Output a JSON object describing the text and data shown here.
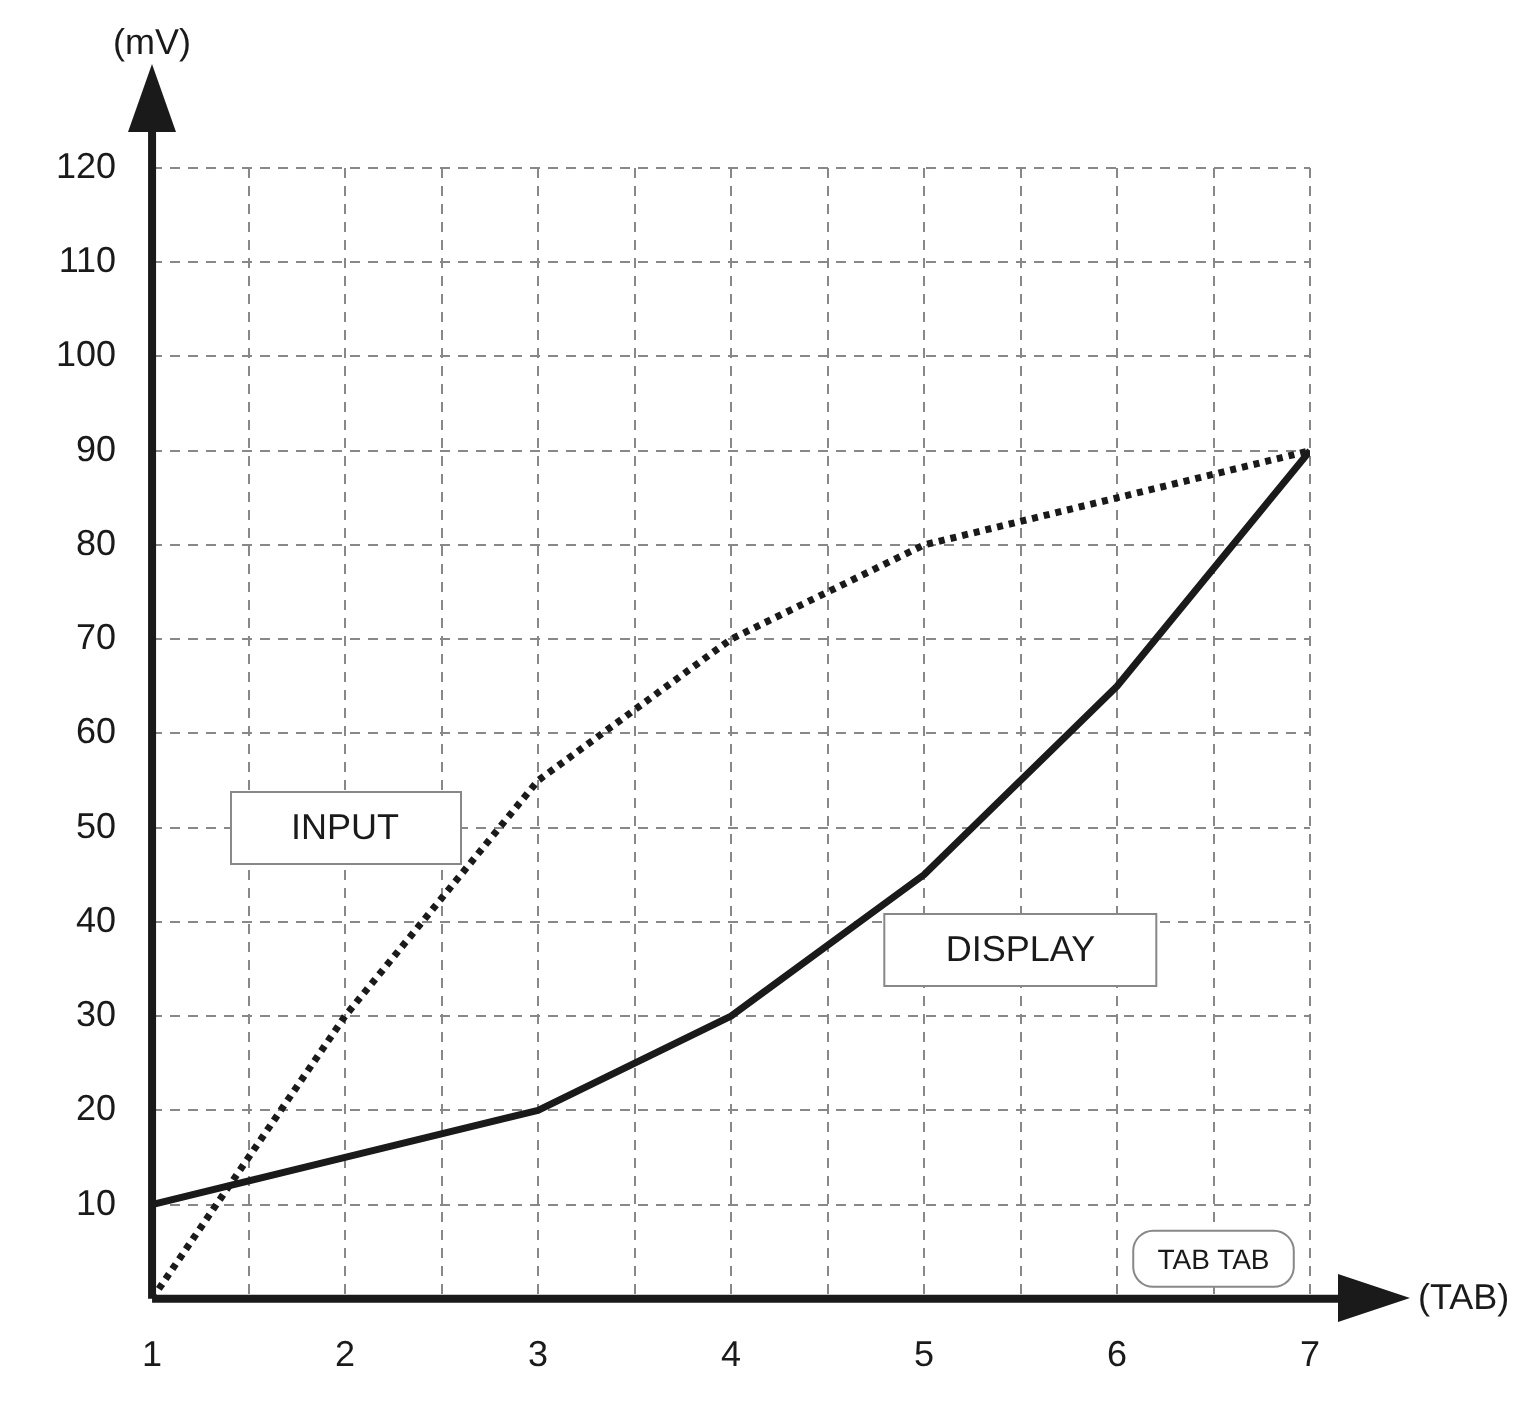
{
  "chart_data": {
    "type": "line",
    "xlabel": "(TAB)",
    "ylabel": "(mV)",
    "x": [
      1,
      2,
      3,
      4,
      5,
      6,
      7
    ],
    "series": [
      {
        "name": "INPUT",
        "color": "#1a1a1a",
        "line_style": "dotted",
        "values": [
          0,
          30,
          55,
          70,
          80,
          85,
          90
        ]
      },
      {
        "name": "DISPLAY",
        "color": "#1a1a1a",
        "line_style": "solid",
        "values": [
          10,
          15,
          20,
          30,
          45,
          65,
          90
        ]
      }
    ],
    "xlim": [
      1,
      7
    ],
    "ylim": [
      0,
      120
    ],
    "xticks": [
      1,
      {
        "value": 1.5,
        "label": null
      },
      2,
      {
        "value": 2.5,
        "label": null
      },
      3,
      {
        "value": 3.5,
        "label": null
      },
      4,
      {
        "value": 4.5,
        "label": null
      },
      5,
      {
        "value": 5.5,
        "label": null
      },
      6,
      {
        "value": 6.5,
        "label": null
      },
      7
    ],
    "yticks": [
      10,
      20,
      30,
      40,
      50,
      60,
      70,
      80,
      90,
      100,
      110,
      120
    ],
    "grid": true,
    "legend": false,
    "marker": "none",
    "annotations": [
      "TAB TAB"
    ]
  }
}
